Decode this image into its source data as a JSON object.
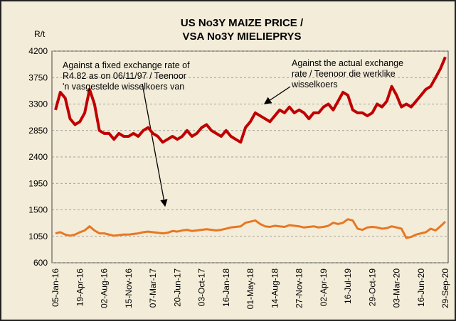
{
  "chart_data": {
    "type": "line",
    "title": [
      "US No3Y MAIZE PRICE /",
      "VSA No3Y MIELIEPRYS"
    ],
    "y_label": "R/t",
    "annotations": [
      [
        "Against a fixed exchange rate of",
        "R4.82  as on 06/11/97 /  Teenoor",
        "'n vasgestelde   wisselkoers van"
      ],
      [
        "Against the actual exchange",
        "rate /  Teenoor die werklike",
        "wisselkoers"
      ]
    ],
    "categories": [
      "05-Jan-16",
      null,
      null,
      null,
      null,
      "19-Apr-16",
      null,
      null,
      null,
      null,
      "02-Aug-16",
      null,
      null,
      null,
      null,
      "15-Nov-16",
      null,
      null,
      null,
      null,
      "07-Mar-17",
      null,
      null,
      null,
      null,
      "20-Jun-17",
      null,
      null,
      null,
      null,
      "03-Oct-17",
      null,
      null,
      null,
      null,
      "16-Jan-18",
      null,
      null,
      null,
      null,
      "01-May-18",
      null,
      null,
      null,
      null,
      "14-Aug-18",
      null,
      null,
      null,
      null,
      "27-Nov-18",
      null,
      null,
      null,
      null,
      "02-Apr-19",
      null,
      null,
      null,
      null,
      "16-Jul-19",
      null,
      null,
      null,
      null,
      "29-Oct-19",
      null,
      null,
      null,
      null,
      "03-Mar-20",
      null,
      null,
      null,
      null,
      "16-Jun-20",
      null,
      null,
      null,
      null,
      "29-Sep-20"
    ],
    "series": [
      {
        "color": "#c00000",
        "width": 4,
        "values": [
          3200,
          3500,
          3400,
          3050,
          2950,
          3000,
          3150,
          3550,
          3300,
          2850,
          2800,
          2800,
          2700,
          2800,
          2750,
          2750,
          2800,
          2750,
          2850,
          2900,
          2800,
          2750,
          2650,
          2700,
          2750,
          2700,
          2750,
          2850,
          2750,
          2800,
          2900,
          2950,
          2850,
          2800,
          2750,
          2850,
          2750,
          2700,
          2650,
          2900,
          3000,
          3150,
          3100,
          3050,
          3000,
          3100,
          3200,
          3150,
          3250,
          3150,
          3200,
          3150,
          3050,
          3150,
          3150,
          3250,
          3300,
          3200,
          3350,
          3500,
          3450,
          3200,
          3150,
          3150,
          3100,
          3150,
          3300,
          3250,
          3350,
          3600,
          3450,
          3250,
          3300,
          3250,
          3350,
          3450,
          3550,
          3600,
          3750,
          3900,
          4100
        ]
      },
      {
        "color": "#e87722",
        "width": 3,
        "values": [
          1100,
          1120,
          1080,
          1060,
          1080,
          1120,
          1150,
          1220,
          1150,
          1100,
          1100,
          1080,
          1060,
          1070,
          1080,
          1080,
          1090,
          1100,
          1120,
          1130,
          1120,
          1110,
          1100,
          1110,
          1140,
          1130,
          1150,
          1160,
          1140,
          1150,
          1160,
          1170,
          1160,
          1150,
          1160,
          1180,
          1200,
          1210,
          1220,
          1280,
          1300,
          1320,
          1260,
          1220,
          1210,
          1230,
          1220,
          1210,
          1240,
          1230,
          1220,
          1200,
          1210,
          1220,
          1200,
          1210,
          1230,
          1280,
          1260,
          1280,
          1340,
          1320,
          1180,
          1160,
          1200,
          1210,
          1200,
          1180,
          1190,
          1220,
          1200,
          1180,
          1020,
          1040,
          1080,
          1100,
          1120,
          1180,
          1150,
          1220,
          1300
        ]
      }
    ],
    "ylim": [
      600,
      4200
    ],
    "yticks": [
      600,
      1050,
      1500,
      1950,
      2400,
      2850,
      3300,
      3750,
      4200
    ],
    "grid": true
  }
}
